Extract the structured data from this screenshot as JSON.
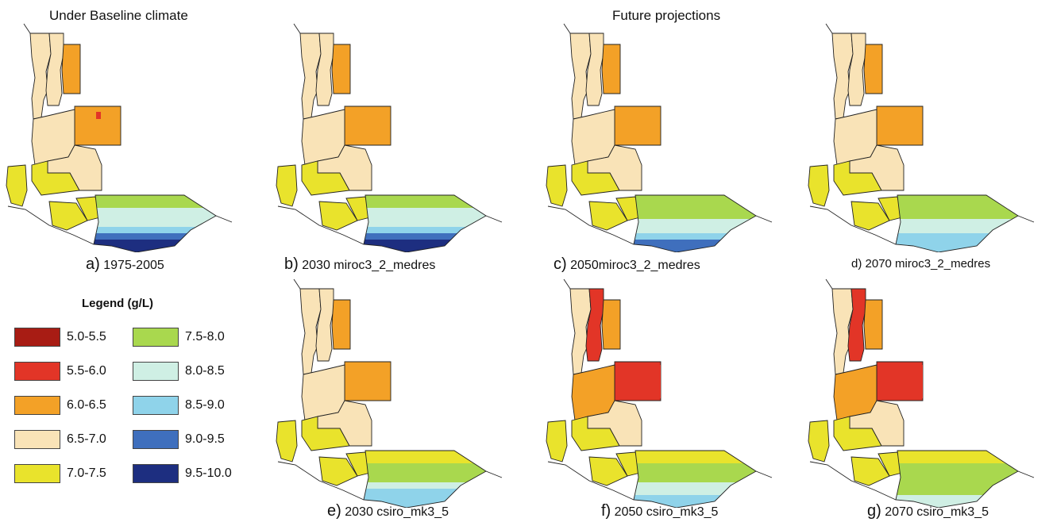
{
  "headers": {
    "baseline": "Under Baseline climate",
    "future": "Future projections"
  },
  "legend": {
    "title": "Legend (g/L)",
    "classes": [
      {
        "label": "5.0-5.5",
        "color": "#a81c14"
      },
      {
        "label": "5.5-6.0",
        "color": "#e23527"
      },
      {
        "label": "6.0-6.5",
        "color": "#f3a127"
      },
      {
        "label": "6.5-7.0",
        "color": "#f9e3b7"
      },
      {
        "label": "7.0-7.5",
        "color": "#e9e32c"
      },
      {
        "label": "7.5-8.0",
        "color": "#a9d84e"
      },
      {
        "label": "8.0-8.5",
        "color": "#cfefe4"
      },
      {
        "label": "8.5-9.0",
        "color": "#8fd3ea"
      },
      {
        "label": "9.0-9.5",
        "color": "#3f6fbd"
      },
      {
        "label": "9.5-10.0",
        "color": "#1d2e80"
      }
    ]
  },
  "panels": [
    {
      "letter": "a)",
      "label": "1975-2005",
      "scheme": [
        3,
        3,
        2,
        2,
        3,
        3,
        4,
        4,
        5,
        6,
        6,
        7,
        8,
        9
      ],
      "hot": false
    },
    {
      "letter": "b)",
      "label": "2030 miroc3_2_medres",
      "scheme": [
        3,
        3,
        2,
        2,
        3,
        3,
        4,
        4,
        5,
        6,
        6,
        7,
        8,
        9
      ],
      "hot": false
    },
    {
      "letter": "c)",
      "label": "2050miroc3_2_medres",
      "scheme": [
        3,
        3,
        2,
        2,
        3,
        3,
        4,
        4,
        5,
        5,
        6,
        6,
        7,
        8
      ],
      "hot": false
    },
    {
      "letter": "d)",
      "label": "2070 miroc3_2_medres",
      "scheme": [
        3,
        3,
        2,
        2,
        3,
        3,
        4,
        4,
        5,
        5,
        6,
        6,
        7,
        7
      ],
      "hot": false
    },
    {
      "letter": "e)",
      "label": "2030 csiro_mk3_5",
      "scheme": [
        3,
        3,
        2,
        2,
        3,
        3,
        4,
        4,
        4,
        5,
        5,
        6,
        7,
        7
      ],
      "hot": false
    },
    {
      "letter": "f)",
      "label": "2050 csiro_mk3_5",
      "scheme": [
        3,
        1,
        2,
        1,
        2,
        3,
        4,
        4,
        4,
        5,
        5,
        6,
        6,
        7
      ],
      "hot": true
    },
    {
      "letter": "g)",
      "label": "2070 csiro_mk3_5",
      "scheme": [
        3,
        1,
        2,
        1,
        2,
        3,
        4,
        4,
        4,
        5,
        5,
        5,
        5,
        6
      ],
      "hot": true
    }
  ]
}
